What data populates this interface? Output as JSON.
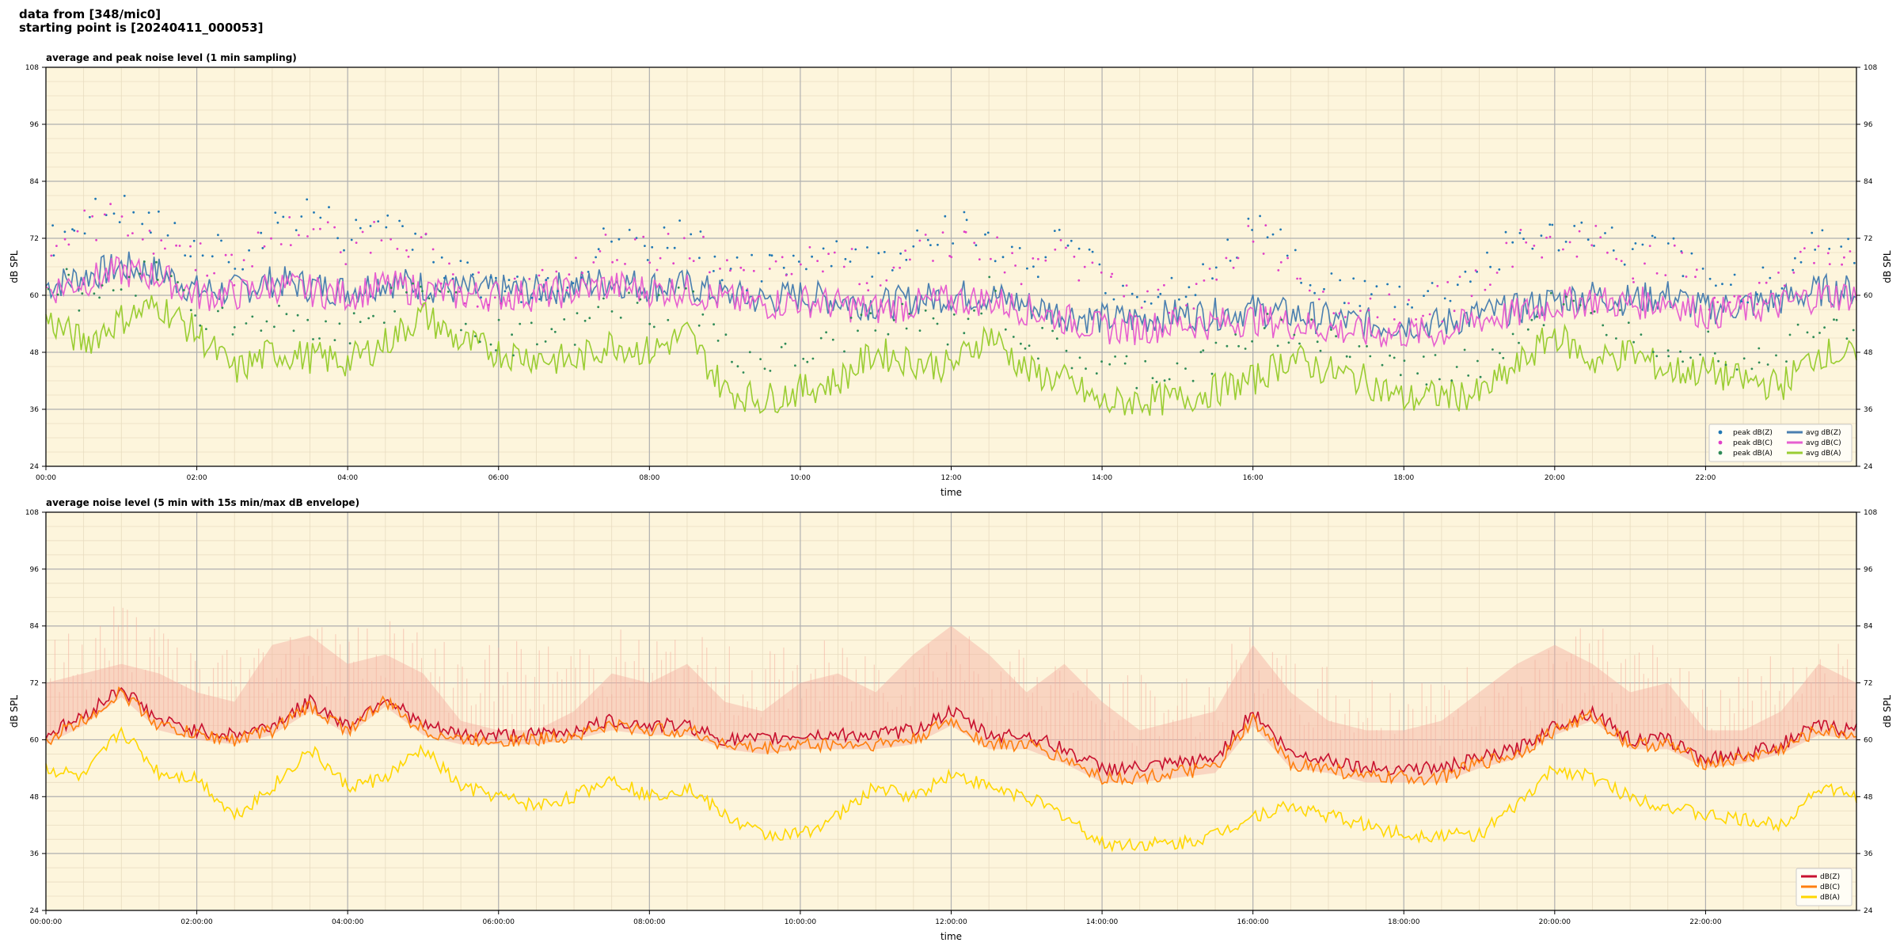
{
  "header": {
    "line1": "data from [348/mic0]",
    "line2": "starting point is [20240411_000053]"
  },
  "chart_data": [
    {
      "type": "line",
      "title": "average and peak noise level (1 min sampling)",
      "xlabel": "time",
      "ylabel": "dB SPL",
      "xlim": [
        0,
        24
      ],
      "ylim": [
        24,
        108
      ],
      "yticks": [
        24,
        36,
        48,
        60,
        72,
        84,
        96,
        108
      ],
      "xtick_labels": [
        "00:00",
        "02:00",
        "04:00",
        "06:00",
        "08:00",
        "10:00",
        "12:00",
        "14:00",
        "16:00",
        "18:00",
        "20:00",
        "22:00"
      ],
      "background": "#fdf5dc",
      "grid": true,
      "legend_position": "lower-right",
      "legend": [
        {
          "label": "peak dB(Z)",
          "kind": "dot",
          "color": "#1f77b4"
        },
        {
          "label": "peak dB(C)",
          "kind": "dot",
          "color": "#e040c8"
        },
        {
          "label": "peak dB(A)",
          "kind": "dot",
          "color": "#2e8b57"
        },
        {
          "label": "avg dB(Z)",
          "kind": "line",
          "color": "#4a7fb0"
        },
        {
          "label": "avg dB(C)",
          "kind": "line",
          "color": "#e65fd0"
        },
        {
          "label": "avg dB(A)",
          "kind": "line",
          "color": "#9acd32"
        }
      ],
      "x_hours": [
        0,
        0.5,
        1,
        1.5,
        2,
        2.5,
        3,
        3.5,
        4,
        4.5,
        5,
        5.5,
        6,
        6.5,
        7,
        7.5,
        8,
        8.5,
        9,
        9.5,
        10,
        10.5,
        11,
        11.5,
        12,
        12.5,
        13,
        13.5,
        14,
        14.5,
        15,
        15.5,
        16,
        16.5,
        17,
        17.5,
        18,
        18.5,
        19,
        19.5,
        20,
        20.5,
        21,
        21.5,
        22,
        22.5,
        23,
        23.5,
        24
      ],
      "series": [
        {
          "name": "avg dB(Z)",
          "color": "#4a7fb0",
          "values": [
            62,
            64,
            66,
            65,
            61,
            61,
            63,
            62,
            61,
            63,
            62,
            61,
            61,
            61,
            62,
            63,
            62,
            62,
            60,
            59,
            60,
            59,
            58,
            59,
            60,
            60,
            58,
            56,
            55,
            55,
            56,
            56,
            57,
            56,
            55,
            54,
            54,
            54,
            56,
            57,
            59,
            60,
            59,
            60,
            57,
            58,
            59,
            61,
            61
          ]
        },
        {
          "name": "avg dB(C)",
          "color": "#e65fd0",
          "values": [
            61,
            63,
            65,
            64,
            60,
            60,
            62,
            61,
            60,
            62,
            61,
            60,
            60,
            60,
            61,
            62,
            61,
            61,
            59,
            58,
            59,
            58,
            57,
            58,
            59,
            59,
            57,
            55,
            53,
            53,
            54,
            54,
            55,
            54,
            53,
            52,
            52,
            52,
            55,
            56,
            58,
            59,
            58,
            59,
            56,
            57,
            58,
            60,
            60
          ]
        },
        {
          "name": "avg dB(A)",
          "color": "#9acd32",
          "values": [
            55,
            50,
            55,
            58,
            52,
            44,
            48,
            47,
            46,
            50,
            56,
            50,
            48,
            47,
            46,
            50,
            48,
            52,
            40,
            38,
            40,
            42,
            48,
            46,
            45,
            52,
            44,
            42,
            37,
            38,
            38,
            40,
            42,
            47,
            44,
            42,
            38,
            39,
            39,
            45,
            52,
            46,
            48,
            44,
            44,
            42,
            41,
            48,
            47
          ]
        },
        {
          "name": "peak dB(Z)",
          "color": "#1f77b4",
          "values": [
            70,
            76,
            78,
            74,
            70,
            68,
            74,
            78,
            72,
            76,
            72,
            64,
            62,
            62,
            65,
            72,
            70,
            74,
            66,
            64,
            68,
            70,
            66,
            72,
            75,
            72,
            66,
            72,
            64,
            60,
            62,
            64,
            76,
            68,
            62,
            60,
            60,
            60,
            66,
            72,
            72,
            74,
            68,
            70,
            62,
            62,
            64,
            72,
            70
          ]
        },
        {
          "name": "peak dB(C)",
          "color": "#e040c8",
          "values": [
            69,
            74,
            76,
            72,
            68,
            66,
            72,
            74,
            70,
            74,
            70,
            62,
            61,
            61,
            64,
            70,
            68,
            72,
            64,
            62,
            66,
            68,
            64,
            70,
            72,
            70,
            64,
            70,
            62,
            58,
            60,
            62,
            74,
            66,
            60,
            58,
            58,
            58,
            64,
            70,
            70,
            72,
            66,
            68,
            60,
            60,
            62,
            70,
            68
          ]
        },
        {
          "name": "peak dB(A)",
          "color": "#2e8b57",
          "values": [
            64,
            60,
            62,
            66,
            58,
            52,
            56,
            54,
            52,
            58,
            62,
            56,
            52,
            50,
            52,
            58,
            56,
            60,
            48,
            46,
            46,
            50,
            56,
            54,
            52,
            60,
            50,
            48,
            44,
            44,
            44,
            46,
            52,
            54,
            50,
            48,
            44,
            44,
            46,
            52,
            58,
            54,
            54,
            50,
            50,
            48,
            48,
            56,
            54
          ]
        }
      ]
    },
    {
      "type": "line",
      "title": "average noise level (5 min with 15s min/max dB envelope)",
      "xlabel": "time",
      "ylabel": "dB SPL",
      "xlim": [
        0,
        24
      ],
      "ylim": [
        24,
        108
      ],
      "yticks": [
        24,
        36,
        48,
        60,
        72,
        84,
        96,
        108
      ],
      "xtick_labels": [
        "00:00:00",
        "02:00:00",
        "04:00:00",
        "06:00:00",
        "08:00:00",
        "10:00:00",
        "12:00:00",
        "14:00:00",
        "16:00:00",
        "18:00:00",
        "20:00:00",
        "22:00:00"
      ],
      "background": "#fdf5dc",
      "grid": true,
      "legend_position": "lower-right",
      "legend": [
        {
          "label": "dB(Z)",
          "kind": "line",
          "color": "#c8102e"
        },
        {
          "label": "dB(C)",
          "kind": "line",
          "color": "#ff7f0e"
        },
        {
          "label": "dB(A)",
          "kind": "line",
          "color": "#ffd700"
        }
      ],
      "x_hours": [
        0,
        0.5,
        1,
        1.5,
        2,
        2.5,
        3,
        3.5,
        4,
        4.5,
        5,
        5.5,
        6,
        6.5,
        7,
        7.5,
        8,
        8.5,
        9,
        9.5,
        10,
        10.5,
        11,
        11.5,
        12,
        12.5,
        13,
        13.5,
        14,
        14.5,
        15,
        15.5,
        16,
        16.5,
        17,
        17.5,
        18,
        18.5,
        19,
        19.5,
        20,
        20.5,
        21,
        21.5,
        22,
        22.5,
        23,
        23.5,
        24
      ],
      "envelope_color": "#f4b0a0",
      "envelope_max": [
        72,
        74,
        76,
        74,
        70,
        68,
        80,
        82,
        76,
        78,
        74,
        64,
        62,
        62,
        66,
        74,
        72,
        76,
        68,
        66,
        72,
        74,
        70,
        78,
        84,
        78,
        70,
        76,
        68,
        62,
        64,
        66,
        80,
        70,
        64,
        62,
        62,
        64,
        70,
        76,
        80,
        76,
        70,
        72,
        62,
        62,
        66,
        76,
        72
      ],
      "series": [
        {
          "name": "dB(Z)",
          "color": "#c8102e",
          "values": [
            61,
            65,
            71,
            64,
            62,
            61,
            63,
            68,
            63,
            69,
            63,
            61,
            61,
            61,
            62,
            64,
            63,
            63,
            60,
            60,
            61,
            61,
            61,
            62,
            66,
            61,
            61,
            58,
            54,
            54,
            55,
            56,
            66,
            57,
            56,
            54,
            54,
            54,
            56,
            58,
            63,
            66,
            60,
            60,
            56,
            57,
            59,
            63,
            62
          ]
        },
        {
          "name": "dB(C)",
          "color": "#ff7f0e",
          "values": [
            60,
            64,
            70,
            63,
            61,
            60,
            62,
            67,
            62,
            68,
            62,
            60,
            60,
            60,
            61,
            63,
            62,
            62,
            59,
            58,
            59,
            59,
            59,
            60,
            64,
            59,
            59,
            56,
            52,
            52,
            53,
            54,
            64,
            55,
            54,
            52,
            52,
            52,
            55,
            57,
            62,
            65,
            59,
            59,
            55,
            56,
            58,
            62,
            61
          ]
        },
        {
          "name": "dB(A)",
          "color": "#ffd700",
          "values": [
            54,
            52,
            62,
            53,
            52,
            44,
            50,
            58,
            50,
            52,
            58,
            50,
            48,
            46,
            48,
            52,
            48,
            50,
            44,
            40,
            40,
            44,
            50,
            48,
            53,
            50,
            48,
            44,
            38,
            38,
            38,
            40,
            44,
            46,
            44,
            42,
            40,
            40,
            40,
            46,
            54,
            52,
            48,
            46,
            44,
            43,
            42,
            50,
            48
          ]
        }
      ]
    }
  ]
}
